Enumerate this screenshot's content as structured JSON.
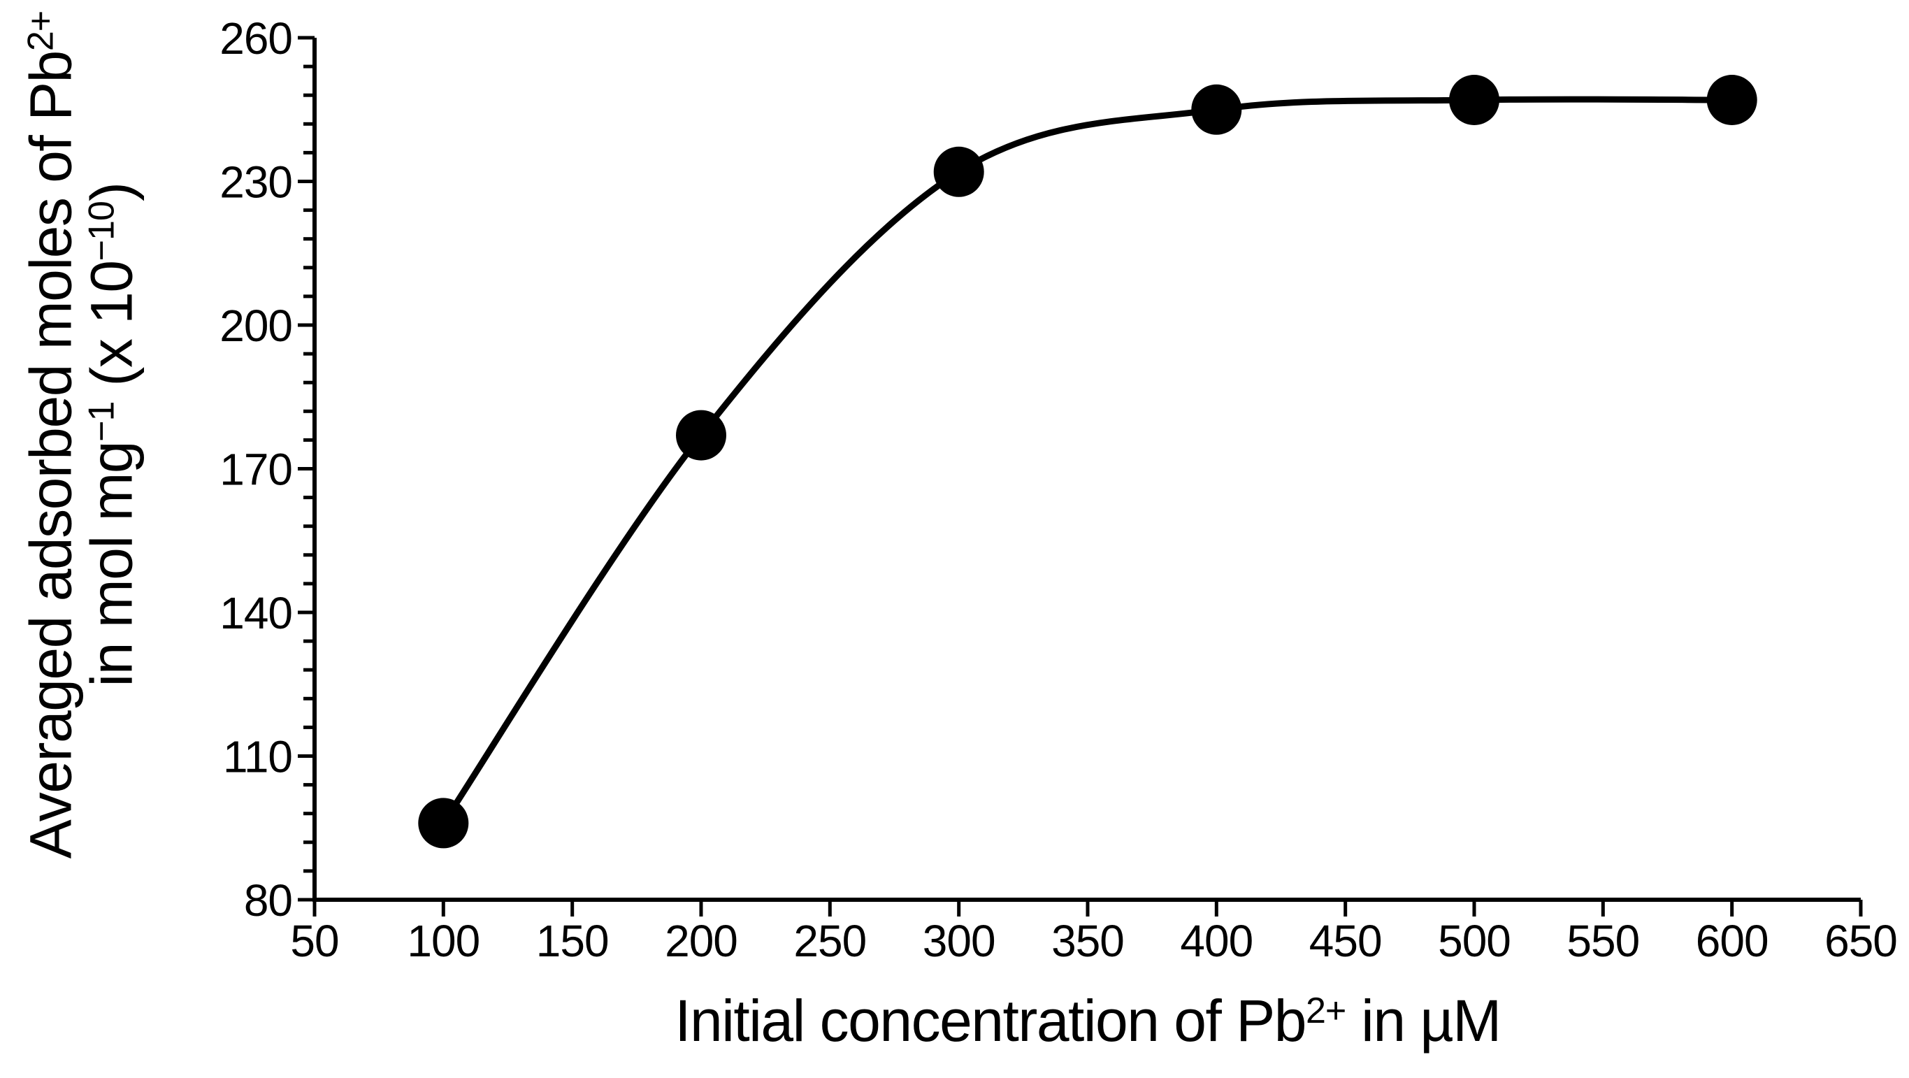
{
  "chart_data": {
    "type": "line",
    "smooth": true,
    "grid": false,
    "legend": "none",
    "background": "#ffffff",
    "line_color": "#000000",
    "marker_color": "#000000",
    "axis_color": "#000000",
    "text_color": "#000000",
    "marker": "filled-circle",
    "series": [
      {
        "x": [
          100,
          200,
          300,
          400,
          500,
          600
        ],
        "y": [
          96,
          177,
          232,
          245,
          247,
          247
        ]
      }
    ],
    "xlim": [
      50,
      650
    ],
    "ylim": [
      80,
      260
    ],
    "x_ticks": [
      50,
      100,
      150,
      200,
      250,
      300,
      350,
      400,
      450,
      500,
      550,
      600,
      650
    ],
    "y_ticks": [
      80,
      110,
      140,
      170,
      200,
      230,
      260
    ],
    "y_minor_step": 6,
    "xlabel_parts": [
      {
        "text": "Initial concentration of Pb"
      },
      {
        "text": "2+",
        "sup": true
      },
      {
        "text": " in µM"
      }
    ],
    "ylabel_lines": [
      [
        {
          "text": "Averaged adsorbed moles of Pb"
        },
        {
          "text": "2+",
          "sup": true
        }
      ],
      [
        {
          "text": "in mol mg"
        },
        {
          "text": "−1",
          "sup": true
        },
        {
          "text": " (x 10"
        },
        {
          "text": "−10",
          "sup": true
        },
        {
          "text": ")"
        }
      ]
    ]
  }
}
